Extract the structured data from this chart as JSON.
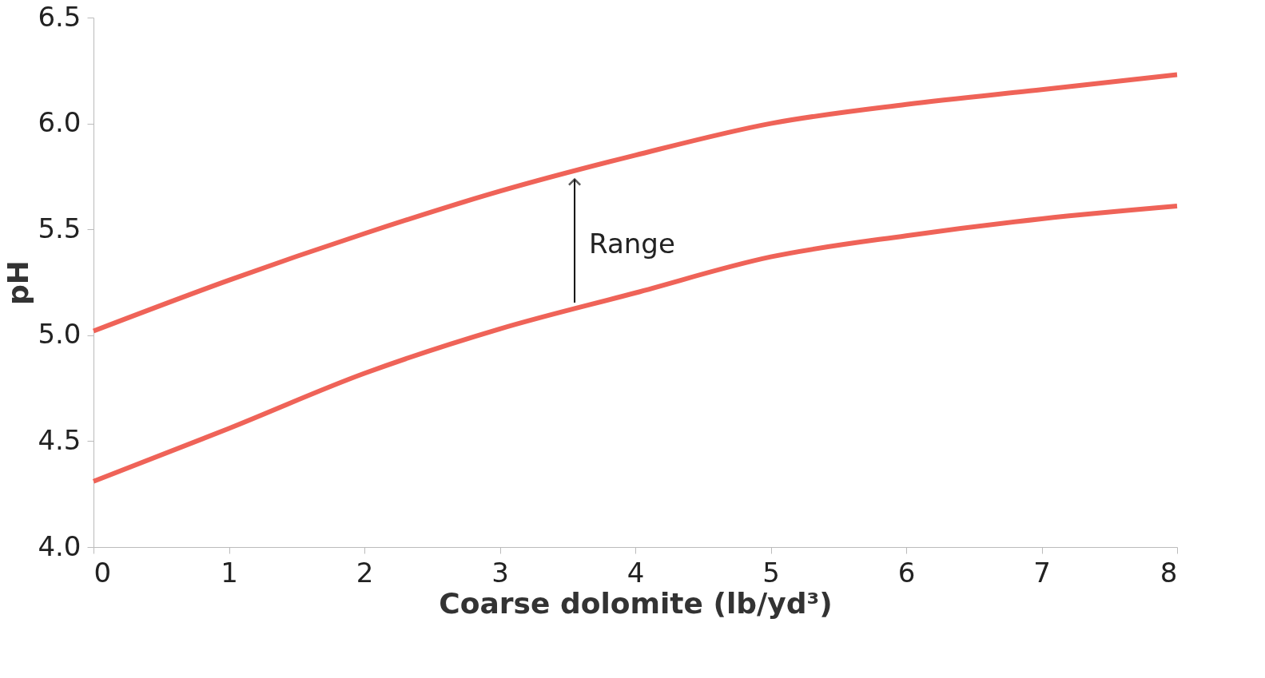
{
  "chart_data": {
    "type": "line",
    "xlabel": "Coarse dolomite (lb/yd³)",
    "ylabel": "pH",
    "x": [
      0,
      1,
      2,
      3,
      4,
      5,
      6,
      7,
      8
    ],
    "series": [
      {
        "color": "#ef6358",
        "values": [
          5.02,
          5.26,
          5.48,
          5.68,
          5.85,
          6.0,
          6.09,
          6.16,
          6.23
        ]
      },
      {
        "color": "#ef6358",
        "values": [
          4.31,
          4.56,
          4.82,
          5.03,
          5.2,
          5.37,
          5.47,
          5.55,
          5.61
        ]
      }
    ],
    "xlim": [
      0,
      8
    ],
    "ylim": [
      4.0,
      6.5
    ],
    "xticks": [
      0,
      1,
      2,
      3,
      4,
      5,
      6,
      7,
      8
    ],
    "yticks": [
      {
        "value": 4.0,
        "label": "4.0"
      },
      {
        "value": 4.5,
        "label": "4.5"
      },
      {
        "value": 5.0,
        "label": "5.0"
      },
      {
        "value": 5.5,
        "label": "5.5"
      },
      {
        "value": 6.0,
        "label": "6.0"
      },
      {
        "value": 6.5,
        "label": "6.5"
      }
    ],
    "annotations": [
      "Range"
    ],
    "grid": false,
    "legend": false,
    "marker": "none",
    "line_style": "solid"
  }
}
